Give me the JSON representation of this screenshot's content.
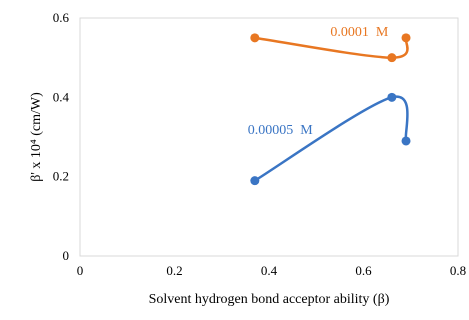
{
  "chart_data": {
    "type": "scatter",
    "title": "",
    "xlabel": "Solvent hydrogen bond acceptor ability (β)",
    "ylabel": "β' x 10⁴ (cm/W)",
    "xlim": [
      0,
      0.8
    ],
    "ylim": [
      0,
      0.6
    ],
    "x_ticks": [
      "0",
      "0.2",
      "0.4",
      "0.6",
      "0.8"
    ],
    "y_ticks": [
      "0",
      "0.2",
      "0.4",
      "0.6"
    ],
    "grid": false,
    "legend": "none (series labeled inline)",
    "series": [
      {
        "name": "0.0001  M",
        "color": "#E87722",
        "points": [
          {
            "x": 0.37,
            "y": 0.55
          },
          {
            "x": 0.66,
            "y": 0.5
          },
          {
            "x": 0.69,
            "y": 0.55
          }
        ]
      },
      {
        "name": "0.00005  M",
        "color": "#3A75C4",
        "points": [
          {
            "x": 0.37,
            "y": 0.19
          },
          {
            "x": 0.66,
            "y": 0.4
          },
          {
            "x": 0.69,
            "y": 0.29
          }
        ]
      }
    ]
  }
}
